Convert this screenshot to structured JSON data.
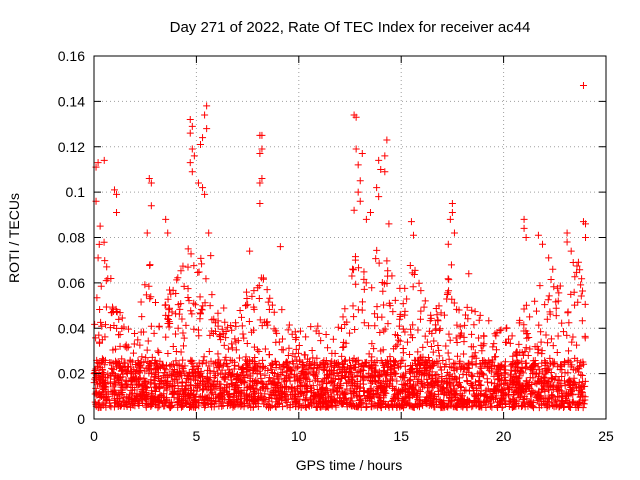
{
  "chart_data": {
    "type": "scatter",
    "title": "Day 271 of 2022, Rate Of TEC Index for receiver ac44",
    "xlabel": "GPS time / hours",
    "ylabel": "ROTI / TECUs",
    "xlim": [
      0,
      25
    ],
    "ylim": [
      0,
      0.16
    ],
    "x_ticks": [
      "0",
      "5",
      "10",
      "15",
      "20",
      "25"
    ],
    "y_ticks": [
      "0",
      "0.02",
      "0.04",
      "0.06",
      "0.08",
      "0.1",
      "0.12",
      "0.14",
      "0.16"
    ],
    "grid": true,
    "marker": "plus",
    "color": "#ff0000",
    "x_data_range": [
      0,
      24
    ],
    "typical_band": [
      0.005,
      0.04
    ],
    "activity_envelope": [
      [
        0.0,
        0.05
      ],
      [
        0.3,
        0.085
      ],
      [
        0.7,
        0.075
      ],
      [
        1.0,
        0.058
      ],
      [
        1.5,
        0.045
      ],
      [
        2.0,
        0.04
      ],
      [
        2.5,
        0.06
      ],
      [
        2.8,
        0.08
      ],
      [
        3.2,
        0.05
      ],
      [
        3.8,
        0.06
      ],
      [
        4.3,
        0.068
      ],
      [
        4.8,
        0.08
      ],
      [
        5.2,
        0.072
      ],
      [
        5.6,
        0.06
      ],
      [
        6.2,
        0.05
      ],
      [
        7.0,
        0.045
      ],
      [
        7.8,
        0.065
      ],
      [
        8.3,
        0.062
      ],
      [
        9.0,
        0.05
      ],
      [
        10.0,
        0.04
      ],
      [
        11.0,
        0.042
      ],
      [
        11.5,
        0.035
      ],
      [
        12.3,
        0.05
      ],
      [
        12.8,
        0.075
      ],
      [
        13.3,
        0.07
      ],
      [
        13.8,
        0.075
      ],
      [
        14.3,
        0.07
      ],
      [
        15.0,
        0.058
      ],
      [
        15.6,
        0.072
      ],
      [
        16.3,
        0.05
      ],
      [
        17.0,
        0.052
      ],
      [
        17.5,
        0.07
      ],
      [
        18.0,
        0.05
      ],
      [
        19.0,
        0.048
      ],
      [
        19.8,
        0.042
      ],
      [
        20.5,
        0.04
      ],
      [
        21.0,
        0.05
      ],
      [
        21.5,
        0.055
      ],
      [
        22.0,
        0.065
      ],
      [
        22.5,
        0.06
      ],
      [
        23.2,
        0.06
      ],
      [
        23.6,
        0.075
      ],
      [
        24.0,
        0.05
      ]
    ],
    "outliers": [
      {
        "x": 0.1,
        "y": 0.111
      },
      {
        "x": 0.2,
        "y": 0.113
      },
      {
        "x": 0.1,
        "y": 0.096
      },
      {
        "x": 0.5,
        "y": 0.114
      },
      {
        "x": 0.3,
        "y": 0.085
      },
      {
        "x": 0.2,
        "y": 0.071
      },
      {
        "x": 1.0,
        "y": 0.101
      },
      {
        "x": 1.1,
        "y": 0.099
      },
      {
        "x": 1.1,
        "y": 0.091
      },
      {
        "x": 2.7,
        "y": 0.106
      },
      {
        "x": 2.8,
        "y": 0.104
      },
      {
        "x": 2.8,
        "y": 0.094
      },
      {
        "x": 2.6,
        "y": 0.082
      },
      {
        "x": 3.5,
        "y": 0.088
      },
      {
        "x": 3.6,
        "y": 0.082
      },
      {
        "x": 4.6,
        "y": 0.075
      },
      {
        "x": 4.7,
        "y": 0.132
      },
      {
        "x": 4.8,
        "y": 0.129
      },
      {
        "x": 4.7,
        "y": 0.126
      },
      {
        "x": 4.8,
        "y": 0.119
      },
      {
        "x": 4.9,
        "y": 0.116
      },
      {
        "x": 4.7,
        "y": 0.113
      },
      {
        "x": 4.8,
        "y": 0.109
      },
      {
        "x": 5.5,
        "y": 0.138
      },
      {
        "x": 5.4,
        "y": 0.134
      },
      {
        "x": 5.5,
        "y": 0.128
      },
      {
        "x": 5.3,
        "y": 0.124
      },
      {
        "x": 5.2,
        "y": 0.121
      },
      {
        "x": 5.1,
        "y": 0.104
      },
      {
        "x": 5.3,
        "y": 0.102
      },
      {
        "x": 5.4,
        "y": 0.099
      },
      {
        "x": 5.6,
        "y": 0.082
      },
      {
        "x": 5.7,
        "y": 0.072
      },
      {
        "x": 8.1,
        "y": 0.125
      },
      {
        "x": 8.2,
        "y": 0.125
      },
      {
        "x": 8.2,
        "y": 0.119
      },
      {
        "x": 8.1,
        "y": 0.117
      },
      {
        "x": 8.2,
        "y": 0.106
      },
      {
        "x": 8.1,
        "y": 0.104
      },
      {
        "x": 8.1,
        "y": 0.095
      },
      {
        "x": 7.6,
        "y": 0.074
      },
      {
        "x": 9.1,
        "y": 0.076
      },
      {
        "x": 12.7,
        "y": 0.134
      },
      {
        "x": 12.8,
        "y": 0.133
      },
      {
        "x": 12.8,
        "y": 0.119
      },
      {
        "x": 12.9,
        "y": 0.112
      },
      {
        "x": 13.1,
        "y": 0.117
      },
      {
        "x": 13.0,
        "y": 0.105
      },
      {
        "x": 12.9,
        "y": 0.1
      },
      {
        "x": 13.0,
        "y": 0.096
      },
      {
        "x": 12.7,
        "y": 0.092
      },
      {
        "x": 13.3,
        "y": 0.088
      },
      {
        "x": 13.5,
        "y": 0.091
      },
      {
        "x": 13.9,
        "y": 0.114
      },
      {
        "x": 14.0,
        "y": 0.11
      },
      {
        "x": 14.3,
        "y": 0.123
      },
      {
        "x": 14.2,
        "y": 0.116
      },
      {
        "x": 14.2,
        "y": 0.109
      },
      {
        "x": 13.8,
        "y": 0.102
      },
      {
        "x": 13.9,
        "y": 0.098
      },
      {
        "x": 14.4,
        "y": 0.086
      },
      {
        "x": 15.5,
        "y": 0.087
      },
      {
        "x": 15.6,
        "y": 0.081
      },
      {
        "x": 17.5,
        "y": 0.095
      },
      {
        "x": 17.5,
        "y": 0.091
      },
      {
        "x": 17.4,
        "y": 0.088
      },
      {
        "x": 17.6,
        "y": 0.082
      },
      {
        "x": 17.3,
        "y": 0.077
      },
      {
        "x": 18.3,
        "y": 0.064
      },
      {
        "x": 21.0,
        "y": 0.088
      },
      {
        "x": 21.0,
        "y": 0.084
      },
      {
        "x": 21.1,
        "y": 0.08
      },
      {
        "x": 21.7,
        "y": 0.081
      },
      {
        "x": 21.9,
        "y": 0.077
      },
      {
        "x": 22.2,
        "y": 0.071
      },
      {
        "x": 22.4,
        "y": 0.066
      },
      {
        "x": 23.1,
        "y": 0.082
      },
      {
        "x": 23.1,
        "y": 0.078
      },
      {
        "x": 23.3,
        "y": 0.074
      },
      {
        "x": 23.4,
        "y": 0.069
      },
      {
        "x": 23.9,
        "y": 0.147
      },
      {
        "x": 23.9,
        "y": 0.087
      },
      {
        "x": 24.0,
        "y": 0.086
      },
      {
        "x": 24.0,
        "y": 0.08
      }
    ]
  }
}
